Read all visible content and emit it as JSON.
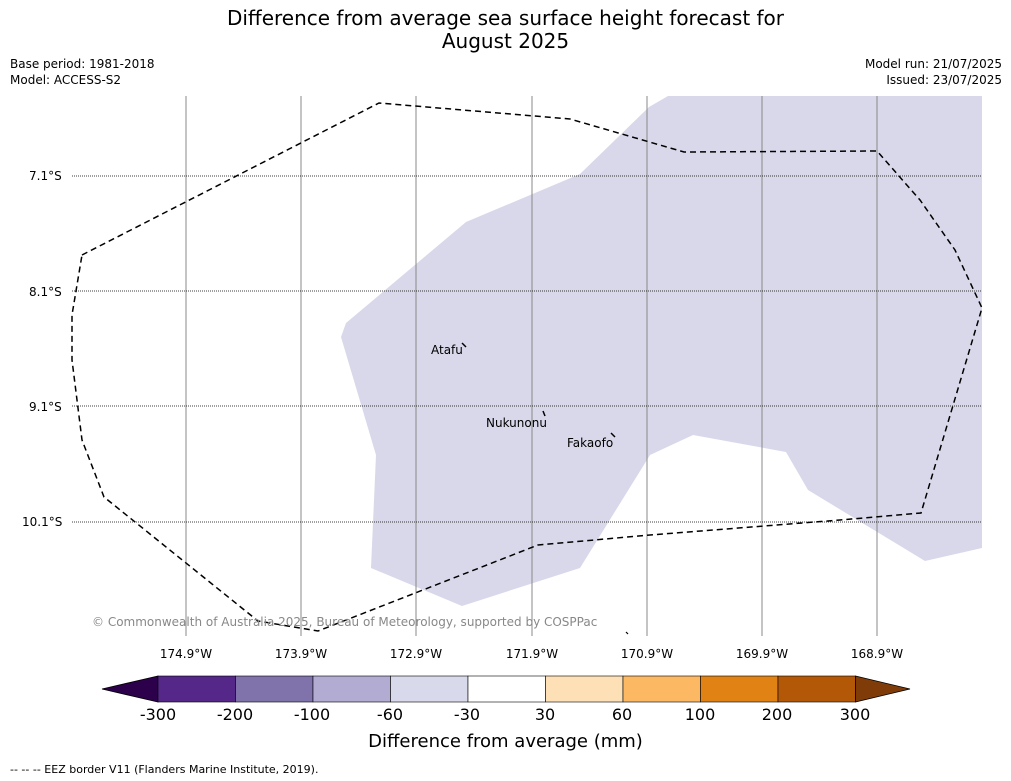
{
  "title": {
    "line1": "Difference from average sea surface height forecast for",
    "line2": "August 2025"
  },
  "meta_left": {
    "base_period": "Base period: 1981-2018",
    "model": "Model: ACCESS-S2"
  },
  "meta_right": {
    "model_run": "Model run: 21/07/2025",
    "issued": "Issued: 23/07/2025"
  },
  "map": {
    "lat_labels": [
      "7.1°S",
      "8.1°S",
      "9.1°S",
      "10.1°S"
    ],
    "lon_labels": [
      "174.9°W",
      "173.9°W",
      "172.9°W",
      "171.9°W",
      "170.9°W",
      "169.9°W",
      "168.9°W"
    ],
    "islands": [
      "Atafu",
      "Nukunonu",
      "Fakaofo"
    ],
    "credit": "© Commonwealth of Australia 2025, Bureau of Meteorology, supported by COSPPac",
    "shaded_category": "-60 to -30 mm",
    "colors": {
      "shaded": "#d8d8ea",
      "gridline": "#888888",
      "eez_line": "#000000"
    }
  },
  "colorbar": {
    "ticks": [
      "-300",
      "-200",
      "-100",
      "-60",
      "-30",
      "30",
      "60",
      "100",
      "200",
      "300"
    ],
    "colors": [
      "#2d004b",
      "#542788",
      "#8073ac",
      "#b2abd2",
      "#d8daeb",
      "#ffffff",
      "#fee0b6",
      "#fdb863",
      "#e08214",
      "#b35806",
      "#7f3b08"
    ],
    "title": "Difference from average (mm)"
  },
  "footnote": "--  --  -- EEZ border V11 (Flanders Marine Institute, 2019)."
}
